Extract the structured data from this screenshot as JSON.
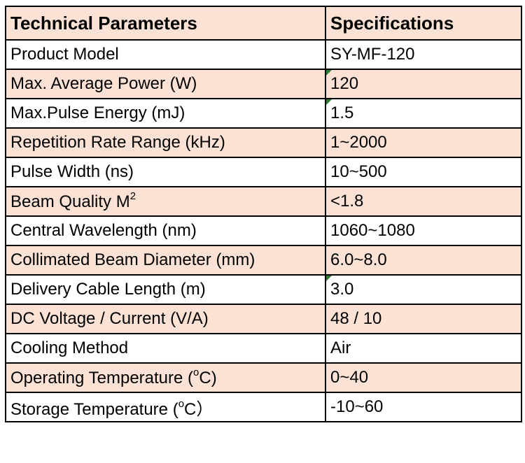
{
  "header": {
    "col1": "Technical Parameters",
    "col2": "Specifications"
  },
  "rows": [
    {
      "param": "Product Model",
      "value": "SY-MF-120"
    },
    {
      "param": "Max. Average Power (W)",
      "value": "120"
    },
    {
      "param": "Max.Pulse Energy (mJ)",
      "value": "1.5"
    },
    {
      "param": "Repetition Rate Range (kHz)",
      "value": "1~2000"
    },
    {
      "param": "Pulse Width (ns)",
      "value": "10~500"
    },
    {
      "param": "Beam Quality M",
      "param_sup": "2",
      "value": "<1.8"
    },
    {
      "param": "Central Wavelength (nm)",
      "value": "1060~1080"
    },
    {
      "param": "Collimated Beam Diameter (mm)",
      "value": "6.0~8.0"
    },
    {
      "param": "Delivery Cable Length (m)",
      "value": "3.0"
    },
    {
      "param": "DC Voltage / Current (V/A)",
      "value": "48 / 10"
    },
    {
      "param": "Cooling Method",
      "value": "Air"
    },
    {
      "param": "Operating Temperature (",
      "param_sup": "o",
      "param_tail": "C)",
      "value": "0~40"
    },
    {
      "param": "Storage Temperature (",
      "param_sup": "o",
      "param_tail": "C）",
      "value": "-10~60"
    }
  ],
  "colors": {
    "shade": "#fbe2d5",
    "border": "#000000",
    "comment_marker": "#2e7d32"
  }
}
